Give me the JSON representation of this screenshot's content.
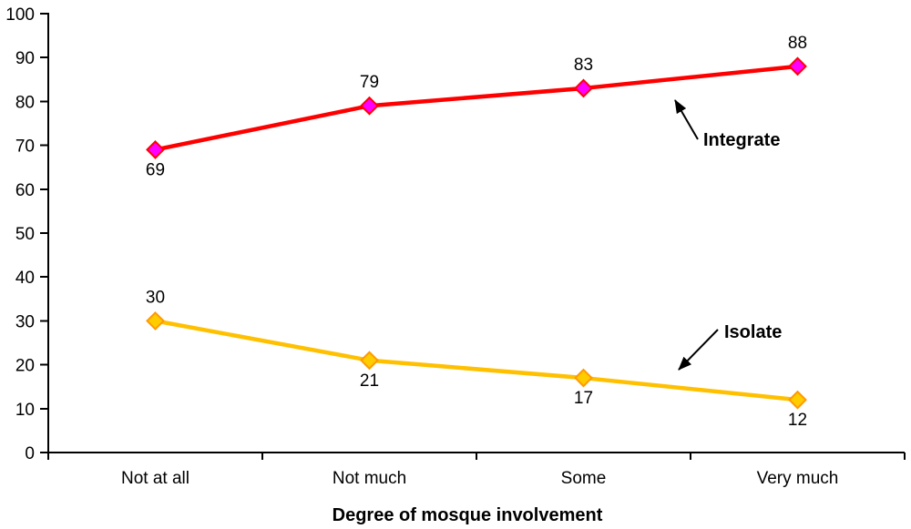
{
  "chart_data": {
    "type": "line",
    "title": "",
    "xlabel": "Degree of mosque involvement",
    "ylabel": "",
    "categories": [
      "Not at all",
      "Not much",
      "Some",
      "Very much"
    ],
    "series": [
      {
        "name": "Integrate",
        "values": [
          69,
          79,
          83,
          88
        ],
        "line_color": "#FF0000",
        "marker_shape": "diamond",
        "marker_fill": "#FF00FF",
        "marker_stroke": "#FF0000",
        "label_positions": [
          "below",
          "above",
          "above",
          "above"
        ]
      },
      {
        "name": "Isolate",
        "values": [
          30,
          21,
          17,
          12
        ],
        "line_color": "#FFC000",
        "marker_shape": "diamond",
        "marker_fill": "#FFCC00",
        "marker_stroke": "#FF9900",
        "label_positions": [
          "above",
          "below",
          "below",
          "below"
        ]
      }
    ],
    "ylim": [
      0,
      100
    ],
    "ytick_step": 10,
    "grid": false,
    "legend": "none",
    "data_labels": true,
    "axis_color": "#000000",
    "text_color": "#000000",
    "background": "#FFFFFF",
    "annotations": [
      {
        "text": "Integrate",
        "target_series": "Integrate",
        "text_x": 772,
        "text_y": 160,
        "arrow_from_x": 766,
        "arrow_from_y": 153,
        "arrow_to_x": 741,
        "arrow_to_y": 110
      },
      {
        "text": "Isolate",
        "target_series": "Isolate",
        "text_x": 795,
        "text_y": 371,
        "arrow_from_x": 788,
        "arrow_from_y": 362,
        "arrow_to_x": 745,
        "arrow_to_y": 406
      }
    ]
  }
}
